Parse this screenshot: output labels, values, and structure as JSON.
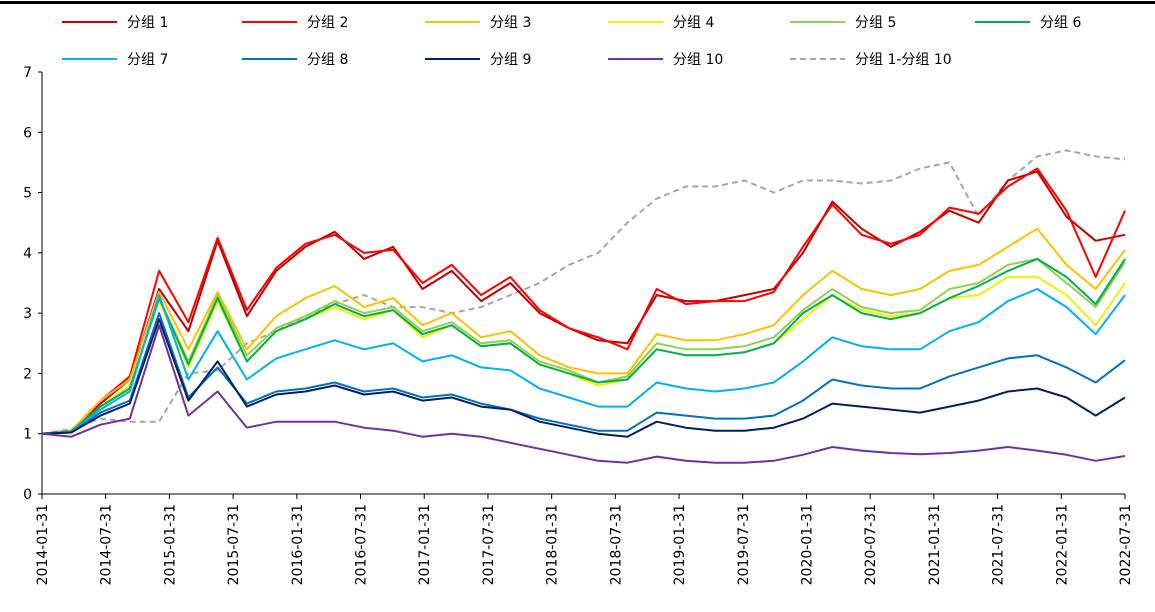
{
  "chart_data": {
    "type": "line",
    "title": "",
    "xlabel": "",
    "ylabel": "",
    "ylim": [
      0,
      7
    ],
    "yticks": [
      "0",
      "1",
      "2",
      "3",
      "4",
      "5",
      "6",
      "7"
    ],
    "x_tick_labels": [
      "2014-01-31",
      "2014-07-31",
      "2015-01-31",
      "2015-07-31",
      "2016-01-31",
      "2016-07-31",
      "2017-01-31",
      "2017-07-31",
      "2018-01-31",
      "2018-07-31",
      "2019-01-31",
      "2019-07-31",
      "2020-01-31",
      "2020-07-31",
      "2021-01-31",
      "2021-07-31",
      "2022-01-31",
      "2022-07-31"
    ],
    "legend_position": "top",
    "series": [
      {
        "name": "分组 1",
        "color": "#c00000",
        "dash": "",
        "values": [
          1.0,
          1.05,
          1.5,
          1.9,
          3.4,
          2.7,
          4.2,
          2.95,
          3.7,
          4.1,
          4.35,
          3.9,
          4.1,
          3.4,
          3.7,
          3.2,
          3.5,
          3.0,
          2.75,
          2.55,
          2.5,
          3.3,
          3.2,
          3.2,
          3.3,
          3.4,
          4.0,
          4.85,
          4.4,
          4.1,
          4.35,
          4.7,
          4.5,
          5.2,
          5.35,
          4.6,
          4.2,
          4.3
        ]
      },
      {
        "name": "分组 2",
        "color": "#ff0000",
        "dash": "",
        "values": [
          1.0,
          1.05,
          1.55,
          1.95,
          3.7,
          2.85,
          4.25,
          3.05,
          3.75,
          4.15,
          4.3,
          4.0,
          4.05,
          3.5,
          3.8,
          3.3,
          3.6,
          3.05,
          2.75,
          2.6,
          2.4,
          3.4,
          3.15,
          3.2,
          3.2,
          3.35,
          4.1,
          4.8,
          4.3,
          4.15,
          4.3,
          4.75,
          4.65,
          5.1,
          5.4,
          4.7,
          3.6,
          4.7
        ]
      },
      {
        "name": "分组 3",
        "color": "#ffc000",
        "dash": "",
        "values": [
          1.0,
          1.05,
          1.55,
          1.9,
          3.35,
          2.4,
          3.35,
          2.4,
          2.95,
          3.25,
          3.45,
          3.1,
          3.25,
          2.8,
          3.0,
          2.6,
          2.7,
          2.3,
          2.1,
          2.0,
          2.0,
          2.65,
          2.55,
          2.55,
          2.65,
          2.8,
          3.3,
          3.7,
          3.4,
          3.3,
          3.4,
          3.7,
          3.8,
          4.1,
          4.4,
          3.8,
          3.4,
          4.05
        ]
      },
      {
        "name": "分组 4",
        "color": "#f0f000",
        "dash": "",
        "values": [
          1.0,
          1.04,
          1.45,
          1.8,
          3.2,
          2.1,
          3.2,
          2.2,
          2.7,
          2.9,
          3.1,
          2.9,
          3.05,
          2.6,
          2.8,
          2.45,
          2.5,
          2.15,
          2.0,
          1.8,
          1.9,
          2.4,
          2.3,
          2.3,
          2.35,
          2.5,
          2.9,
          3.3,
          3.05,
          2.95,
          3.0,
          3.25,
          3.3,
          3.6,
          3.6,
          3.3,
          2.8,
          3.5
        ]
      },
      {
        "name": "分组 5",
        "color": "#92d050",
        "dash": "",
        "values": [
          1.0,
          1.04,
          1.45,
          1.75,
          3.25,
          2.2,
          3.3,
          2.3,
          2.75,
          2.95,
          3.2,
          3.0,
          3.1,
          2.7,
          2.85,
          2.5,
          2.55,
          2.2,
          2.05,
          1.85,
          1.95,
          2.5,
          2.4,
          2.4,
          2.45,
          2.6,
          3.05,
          3.4,
          3.1,
          3.0,
          3.05,
          3.4,
          3.5,
          3.8,
          3.9,
          3.5,
          3.1,
          3.85
        ]
      },
      {
        "name": "分组 6",
        "color": "#00b050",
        "dash": "",
        "values": [
          1.0,
          1.04,
          1.45,
          1.75,
          3.25,
          2.15,
          3.25,
          2.2,
          2.7,
          2.9,
          3.15,
          2.95,
          3.05,
          2.65,
          2.8,
          2.45,
          2.5,
          2.15,
          2.0,
          1.85,
          1.9,
          2.4,
          2.3,
          2.3,
          2.35,
          2.5,
          3.0,
          3.3,
          3.0,
          2.9,
          3.0,
          3.25,
          3.45,
          3.7,
          3.9,
          3.6,
          3.15,
          3.9
        ]
      },
      {
        "name": "分组 7",
        "color": "#00b0f0",
        "dash": "",
        "values": [
          1.0,
          1.03,
          1.4,
          1.7,
          3.3,
          1.9,
          2.7,
          1.9,
          2.25,
          2.4,
          2.55,
          2.4,
          2.5,
          2.2,
          2.3,
          2.1,
          2.05,
          1.75,
          1.6,
          1.45,
          1.45,
          1.85,
          1.75,
          1.7,
          1.75,
          1.85,
          2.2,
          2.6,
          2.45,
          2.4,
          2.4,
          2.7,
          2.85,
          3.2,
          3.4,
          3.1,
          2.65,
          3.3
        ]
      },
      {
        "name": "分组 8",
        "color": "#0070c0",
        "dash": "",
        "values": [
          1.0,
          1.02,
          1.35,
          1.55,
          3.0,
          1.6,
          2.1,
          1.5,
          1.7,
          1.75,
          1.85,
          1.7,
          1.75,
          1.6,
          1.65,
          1.5,
          1.4,
          1.25,
          1.15,
          1.05,
          1.05,
          1.35,
          1.3,
          1.25,
          1.25,
          1.3,
          1.55,
          1.9,
          1.8,
          1.75,
          1.75,
          1.95,
          2.1,
          2.25,
          2.3,
          2.1,
          1.85,
          2.22
        ]
      },
      {
        "name": "分组 9",
        "color": "#002060",
        "dash": "",
        "values": [
          1.0,
          1.02,
          1.3,
          1.5,
          2.9,
          1.55,
          2.2,
          1.45,
          1.65,
          1.7,
          1.8,
          1.65,
          1.7,
          1.55,
          1.6,
          1.45,
          1.4,
          1.2,
          1.1,
          1.0,
          0.95,
          1.2,
          1.1,
          1.05,
          1.05,
          1.1,
          1.25,
          1.5,
          1.45,
          1.4,
          1.35,
          1.45,
          1.55,
          1.7,
          1.75,
          1.6,
          1.3,
          1.6
        ]
      },
      {
        "name": "分组 10",
        "color": "#7030a0",
        "dash": "",
        "values": [
          1.0,
          0.95,
          1.15,
          1.25,
          2.8,
          1.3,
          1.7,
          1.1,
          1.2,
          1.2,
          1.2,
          1.1,
          1.05,
          0.95,
          1.0,
          0.95,
          0.85,
          0.75,
          0.65,
          0.55,
          0.52,
          0.62,
          0.55,
          0.52,
          0.52,
          0.55,
          0.65,
          0.78,
          0.72,
          0.68,
          0.66,
          0.68,
          0.72,
          0.78,
          0.72,
          0.65,
          0.55,
          0.63
        ]
      },
      {
        "name": "分组 1-分组 10",
        "color": "#a6a6a6",
        "dash": "6,4",
        "values": [
          1.0,
          1.08,
          1.25,
          1.2,
          1.2,
          2.0,
          2.05,
          2.5,
          2.7,
          2.95,
          3.15,
          3.3,
          3.1,
          3.1,
          3.0,
          3.1,
          3.3,
          3.5,
          3.8,
          4.0,
          4.5,
          4.9,
          5.1,
          5.1,
          5.2,
          5.0,
          5.2,
          5.2,
          5.15,
          5.2,
          5.4,
          5.5,
          4.6,
          5.2,
          5.6,
          5.7,
          5.6,
          5.55
        ]
      }
    ]
  }
}
